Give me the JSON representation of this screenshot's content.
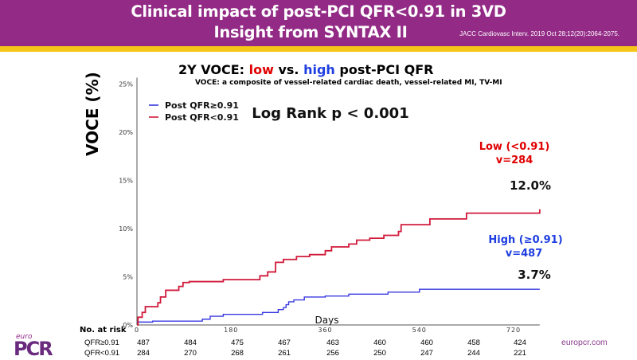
{
  "header": {
    "title_line1": "Clinical impact of post-PCI QFR<0.91 in 3VD",
    "title_line2": "Insight from SYNTAX II",
    "citation": "JACC Cardiovasc Interv. 2019 Oct 28;12(20):2064-2075."
  },
  "colors": {
    "header_bg": "#922a86",
    "accent_gold": "#f5c518",
    "low_red": "#d11a3a",
    "high_blue": "#3a3ae0"
  },
  "chart_title": {
    "part1": "2Y VOCE: ",
    "low": "low",
    "part2": " vs. ",
    "high": "high",
    "part3": " post-PCI QFR"
  },
  "subtitle": "VOCE: a composite of vessel-related cardiac death, vessel-related MI, TV-MI",
  "annotations": {
    "logrank": "Log Rank p < 0.001",
    "low_label": "Low (<0.91)",
    "low_n": "v=284",
    "low_pct": "12.0%",
    "high_label": "High (≥0.91)",
    "high_n": "v=487",
    "high_pct": "3.7%"
  },
  "chart_data": {
    "type": "line",
    "title": "2Y VOCE: low vs. high post-PCI QFR",
    "xlabel": "Days",
    "ylabel": "VOCE (%)",
    "xlim": [
      0,
      770
    ],
    "ylim": [
      0,
      25
    ],
    "xticks": [
      0,
      180,
      360,
      540,
      720
    ],
    "xtick_labels": [
      "0",
      "180",
      "360",
      "540",
      "720"
    ],
    "yticks": [
      0,
      5,
      10,
      15,
      20,
      25
    ],
    "ytick_labels": [
      "0%",
      "5%",
      "10%",
      "15%",
      "20%",
      "25%"
    ],
    "grid": false,
    "legend": {
      "position": "top-left",
      "entries": [
        "Post QFR≥0.91",
        "Post QFR<0.91"
      ]
    },
    "series": [
      {
        "name": "Post QFR≥0.91",
        "color": "#3a3ae0",
        "step": true,
        "x": [
          0,
          30,
          125,
          140,
          165,
          240,
          270,
          280,
          285,
          290,
          300,
          320,
          360,
          405,
          480,
          540,
          770
        ],
        "y": [
          0.3,
          0.4,
          0.6,
          0.9,
          1.1,
          1.3,
          1.6,
          1.8,
          2.1,
          2.4,
          2.6,
          2.9,
          3.0,
          3.2,
          3.4,
          3.7,
          3.7
        ]
      },
      {
        "name": "Post QFR<0.91",
        "color": "#d11a3a",
        "step": true,
        "x": [
          0,
          2,
          10,
          16,
          40,
          45,
          55,
          80,
          88,
          100,
          140,
          165,
          235,
          250,
          265,
          280,
          305,
          330,
          360,
          372,
          405,
          420,
          445,
          472,
          500,
          505,
          560,
          630,
          770
        ],
        "y": [
          0,
          0.8,
          1.3,
          1.9,
          2.3,
          2.9,
          3.6,
          4.0,
          4.4,
          4.5,
          4.5,
          4.7,
          5.1,
          5.5,
          6.5,
          6.8,
          7.1,
          7.3,
          7.7,
          8.1,
          8.4,
          8.8,
          9.0,
          9.3,
          9.7,
          10.4,
          11.0,
          11.6,
          12.0
        ]
      }
    ],
    "annotations": [
      "Log Rank p < 0.001",
      "Low (<0.91) v=284 12.0%",
      "High (≥0.91) v=487 3.7%"
    ]
  },
  "risk_table": {
    "title": "No. at risk",
    "rows": [
      {
        "label": "QFR≥0.91",
        "values": [
          "487",
          "484",
          "475",
          "467",
          "463",
          "460",
          "460",
          "458",
          "424"
        ]
      },
      {
        "label": "QFR<0.91",
        "values": [
          "284",
          "270",
          "268",
          "261",
          "256",
          "250",
          "247",
          "244",
          "221"
        ]
      }
    ]
  },
  "footer": {
    "logo_small": "euro",
    "logo_big": "PCR",
    "site": "europcr.com"
  }
}
